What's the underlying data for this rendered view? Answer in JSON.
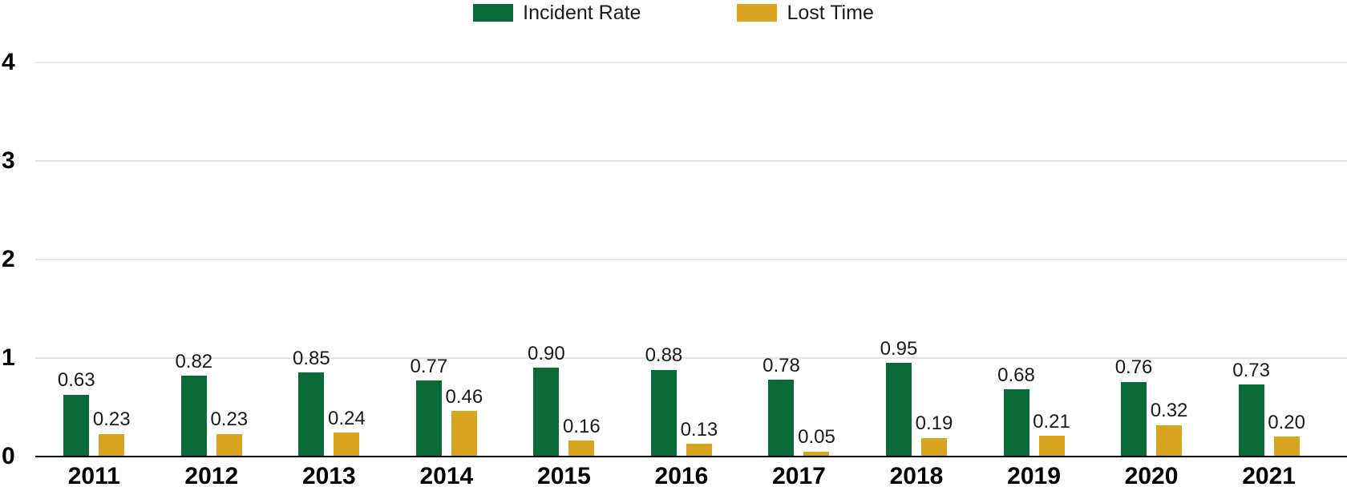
{
  "chart_data": {
    "type": "bar",
    "title": "",
    "categories": [
      "2011",
      "2012",
      "2013",
      "2014",
      "2015",
      "2016",
      "2017",
      "2018",
      "2019",
      "2020",
      "2021"
    ],
    "series": [
      {
        "name": "Incident Rate",
        "color": "#0a6a38",
        "values": [
          0.63,
          0.82,
          0.85,
          0.77,
          0.9,
          0.88,
          0.78,
          0.95,
          0.68,
          0.76,
          0.73
        ]
      },
      {
        "name": "Lost Time",
        "color": "#d9a51f",
        "values": [
          0.23,
          0.23,
          0.24,
          0.46,
          0.16,
          0.13,
          0.05,
          0.19,
          0.21,
          0.32,
          0.2
        ]
      }
    ],
    "ylim": [
      0,
      4
    ],
    "yticks": [
      0,
      1,
      2,
      3,
      4
    ],
    "grid": true,
    "legend_position": "top",
    "value_label_decimals": 2
  },
  "colors": {
    "grid": "#e4e4e4",
    "axis": "#000000",
    "text": "#1a1a1a"
  }
}
